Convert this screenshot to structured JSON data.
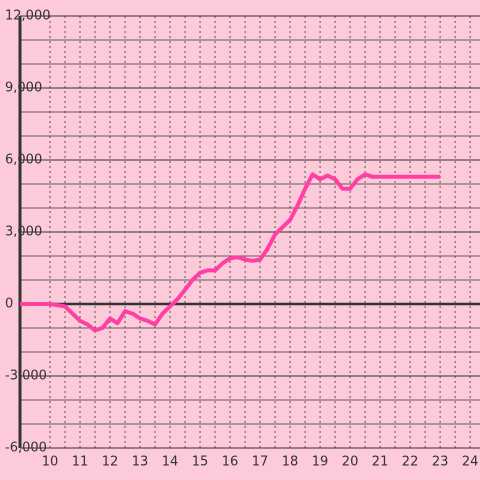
{
  "chart_data": {
    "type": "line",
    "x": [
      9,
      10,
      10.5,
      10.75,
      11,
      11.25,
      11.5,
      11.75,
      12,
      12.25,
      12.5,
      12.75,
      13,
      13.25,
      13.5,
      13.75,
      14,
      14.25,
      14.5,
      14.75,
      15,
      15.25,
      15.5,
      15.75,
      16,
      16.25,
      16.5,
      16.75,
      17,
      17.25,
      17.5,
      17.75,
      18,
      18.25,
      18.5,
      18.75,
      19,
      19.25,
      19.5,
      19.75,
      20,
      20.25,
      20.5,
      20.75,
      21,
      23
    ],
    "series": [
      {
        "color": "#ff3fa4",
        "values": [
          0,
          0,
          -100,
          -400,
          -700,
          -850,
          -1100,
          -1000,
          -600,
          -800,
          -300,
          -400,
          -600,
          -700,
          -850,
          -400,
          -100,
          200,
          600,
          1000,
          1300,
          1400,
          1400,
          1700,
          1900,
          1950,
          1850,
          1800,
          1850,
          2300,
          2900,
          3200,
          3500,
          4100,
          4800,
          5400,
          5200,
          5350,
          5200,
          4800,
          4800,
          5200,
          5400,
          5300,
          5300,
          5300
        ]
      }
    ],
    "xlim": [
      9,
      24.33
    ],
    "ylim": [
      -6000,
      12000
    ],
    "xticks": [
      10,
      11,
      12,
      13,
      14,
      15,
      16,
      17,
      18,
      19,
      20,
      21,
      22,
      23,
      24
    ],
    "yticks": [
      {
        "value": -6000,
        "label": "-6,000"
      },
      {
        "value": -3000,
        "label": "-3,000"
      },
      0,
      {
        "value": 3000,
        "label": "3,000"
      },
      {
        "value": 6000,
        "label": "6,000"
      },
      {
        "value": 9000,
        "label": "9,000"
      },
      {
        "value": 12000,
        "label": "12,000"
      }
    ],
    "grid": true
  }
}
